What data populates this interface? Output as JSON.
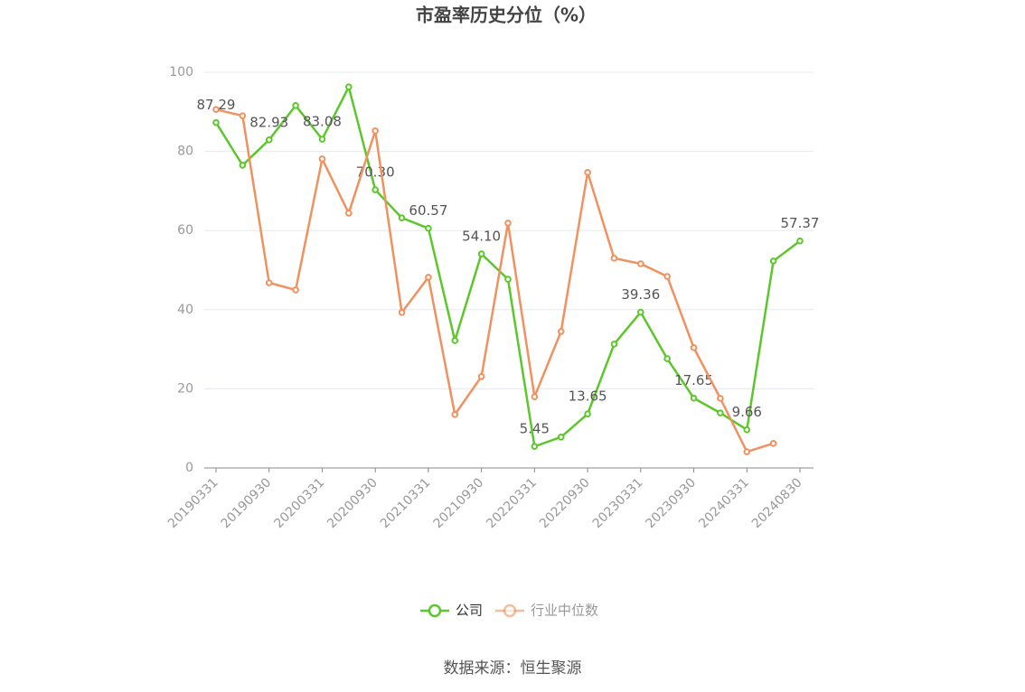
{
  "chart_data": {
    "type": "line",
    "title": "市盈率历史分位（%）",
    "categories": [
      "20190331",
      null,
      "20190930",
      null,
      "20200331",
      null,
      "20200930",
      null,
      "20210331",
      null,
      "20210930",
      null,
      "20220331",
      null,
      "20220930",
      null,
      "20230331",
      null,
      "20230930",
      null,
      "20240331",
      null,
      "20240830"
    ],
    "series": [
      {
        "name": "公司",
        "color": "#5cc72b",
        "values": [
          87.29,
          76.5,
          82.93,
          91.6,
          83.08,
          96.3,
          70.3,
          63.2,
          60.57,
          32.2,
          54.1,
          47.7,
          5.45,
          7.8,
          13.65,
          31.3,
          39.36,
          27.6,
          17.65,
          13.9,
          9.66,
          52.3,
          57.37
        ],
        "value_labels": [
          "87.29",
          null,
          "82.93",
          null,
          "83.08",
          null,
          "70.30",
          null,
          "60.57",
          null,
          "54.10",
          null,
          "5.45",
          null,
          "13.65",
          null,
          "39.36",
          null,
          "17.65",
          null,
          "9.66",
          null,
          "57.37"
        ]
      },
      {
        "name": "行业中位数",
        "color": "#f0915f",
        "values": [
          90.6,
          89.0,
          46.8,
          45.0,
          78.1,
          64.4,
          85.2,
          39.3,
          48.2,
          13.5,
          23.1,
          61.9,
          18.0,
          34.5,
          74.7,
          53.0,
          51.6,
          48.4,
          30.4,
          17.6,
          4.1,
          6.2,
          null
        ]
      }
    ],
    "ylim": [
      0,
      100
    ],
    "yticks": [
      0,
      20,
      40,
      60,
      80,
      100
    ],
    "grid": true,
    "source": "数据来源：恒生聚源"
  }
}
